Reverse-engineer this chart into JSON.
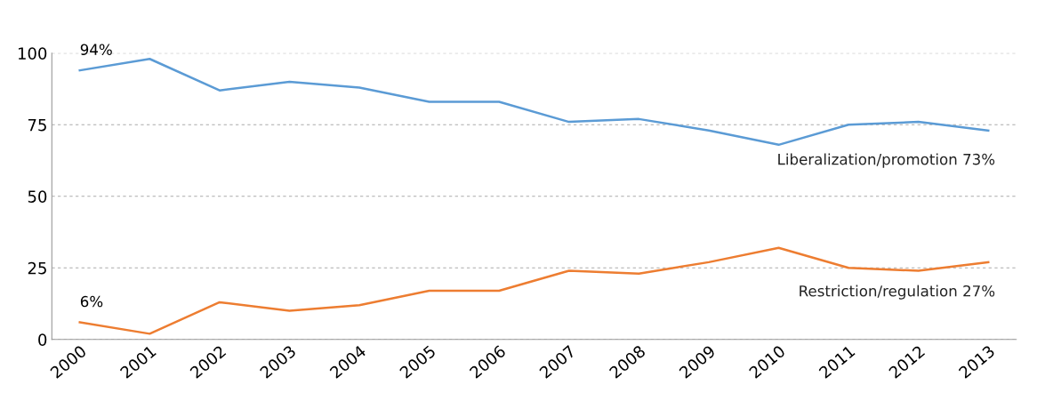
{
  "chart_data": {
    "type": "line",
    "categories": [
      "2000",
      "2001",
      "2002",
      "2003",
      "2004",
      "2005",
      "2006",
      "2007",
      "2008",
      "2009",
      "2010",
      "2011",
      "2012",
      "2013"
    ],
    "series": [
      {
        "name": "Liberalization/promotion 73%",
        "color": "#5b9bd5",
        "values": [
          94,
          98,
          87,
          90,
          88,
          83,
          83,
          76,
          77,
          73,
          68,
          75,
          76,
          73
        ]
      },
      {
        "name": "Restriction/regulation 27%",
        "color": "#ed7d31",
        "values": [
          6,
          2,
          13,
          10,
          12,
          17,
          17,
          24,
          23,
          27,
          32,
          25,
          24,
          27
        ]
      }
    ],
    "annotations": [
      {
        "text": "94%",
        "x": "2000",
        "y": 94
      },
      {
        "text": "6%",
        "x": "2000",
        "y": 6
      }
    ],
    "ylim": [
      0,
      100
    ],
    "yticks": [
      0,
      25,
      50,
      75,
      100
    ],
    "grid": "y",
    "marker": "none",
    "line_style": "solid",
    "legend": false
  }
}
